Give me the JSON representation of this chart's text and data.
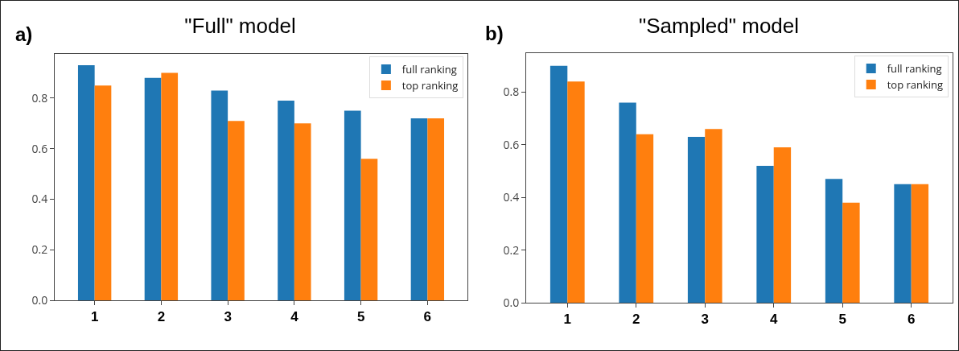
{
  "chart_data": [
    {
      "type": "bar",
      "title": "\"Full\" model",
      "annotations": [
        "a)"
      ],
      "categories": [
        "1",
        "2",
        "3",
        "4",
        "5",
        "6"
      ],
      "series": [
        {
          "name": "full ranking",
          "color": "#1f77b4",
          "values": [
            0.93,
            0.88,
            0.83,
            0.79,
            0.75,
            0.72
          ]
        },
        {
          "name": "top ranking",
          "color": "#ff7f0e",
          "values": [
            0.85,
            0.9,
            0.71,
            0.7,
            0.56,
            0.72
          ]
        }
      ],
      "ylim": [
        0,
        0.975
      ],
      "yticks": [
        {
          "value": 0,
          "label": "0.0"
        },
        0.2,
        0.4,
        0.6,
        0.8
      ],
      "grid": false,
      "legend": "top right"
    },
    {
      "type": "bar",
      "title": "\"Sampled\" model",
      "annotations": [
        "b)"
      ],
      "categories": [
        "1",
        "2",
        "3",
        "4",
        "5",
        "6"
      ],
      "series": [
        {
          "name": "full ranking",
          "color": "#1f77b4",
          "values": [
            0.9,
            0.76,
            0.63,
            0.52,
            0.47,
            0.45
          ]
        },
        {
          "name": "top ranking",
          "color": "#ff7f0e",
          "values": [
            0.84,
            0.64,
            0.66,
            0.59,
            0.38,
            0.45
          ]
        }
      ],
      "ylim": [
        0,
        0.948
      ],
      "yticks": [
        {
          "value": 0,
          "label": "0.0"
        },
        0.2,
        0.4,
        0.6,
        0.8
      ],
      "grid": false,
      "legend": "top right"
    }
  ]
}
